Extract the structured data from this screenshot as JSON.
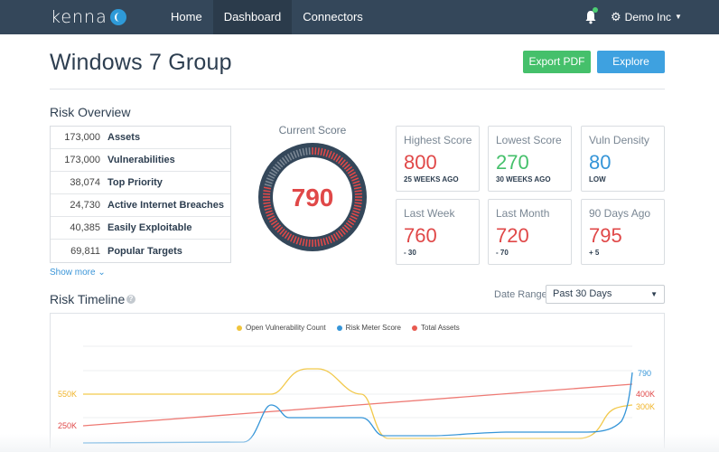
{
  "nav": {
    "logo": "kenna",
    "items": [
      {
        "label": "Home"
      },
      {
        "label": "Dashboard"
      },
      {
        "label": "Connectors"
      }
    ],
    "account_label": "Demo Inc"
  },
  "header": {
    "title": "Windows 7 Group",
    "export_label": "Export PDF",
    "explore_label": "Explore"
  },
  "overview": {
    "title": "Risk Overview",
    "stats": [
      {
        "value": "173,000",
        "label": "Assets"
      },
      {
        "value": "173,000",
        "label": "Vulnerabilities"
      },
      {
        "value": "38,074",
        "label": "Top Priority"
      },
      {
        "value": "24,730",
        "label": "Active Internet Breaches"
      },
      {
        "value": "40,385",
        "label": "Easily Exploitable"
      },
      {
        "value": "69,811",
        "label": "Popular Targets"
      }
    ],
    "show_more": "Show more"
  },
  "score": {
    "label": "Current Score",
    "value": "790",
    "fill": 0.79,
    "colors": {
      "fill": "#e04848",
      "track": "#7b8794",
      "bg": "#34475a"
    }
  },
  "cards": [
    {
      "title": "Highest Score",
      "value": "800",
      "sub": "25 WEEKS AGO",
      "color": "red"
    },
    {
      "title": "Lowest Score",
      "value": "270",
      "sub": "30 WEEKS AGO",
      "color": "green"
    },
    {
      "title": "Vuln Density",
      "value": "80",
      "sub": "LOW",
      "color": "blue"
    },
    {
      "title": "Last Week",
      "value": "760",
      "sub": "- 30",
      "color": "red"
    },
    {
      "title": "Last Month",
      "value": "720",
      "sub": "- 70",
      "color": "red"
    },
    {
      "title": "90 Days Ago",
      "value": "795",
      "sub": "+ 5",
      "color": "red"
    }
  ],
  "timeline": {
    "title": "Risk Timeline",
    "help": "?",
    "range_label": "Date Range",
    "range_value": "Past 30 Days"
  },
  "chart_data": {
    "type": "line",
    "legend": [
      {
        "name": "Open Vulnerability Count",
        "color": "#f0c43c"
      },
      {
        "name": "Risk Meter Score",
        "color": "#3595d8"
      },
      {
        "name": "Total Assets",
        "color": "#e85a50"
      }
    ],
    "left_labels": [
      {
        "text": "550K",
        "color": "#f0b429"
      },
      {
        "text": "250K",
        "color": "#e04848"
      }
    ],
    "end_labels": [
      {
        "text": "790",
        "color": "#3595d8"
      },
      {
        "text": "400K",
        "color": "#e04848"
      },
      {
        "text": "300K",
        "color": "#f0b429"
      }
    ]
  }
}
